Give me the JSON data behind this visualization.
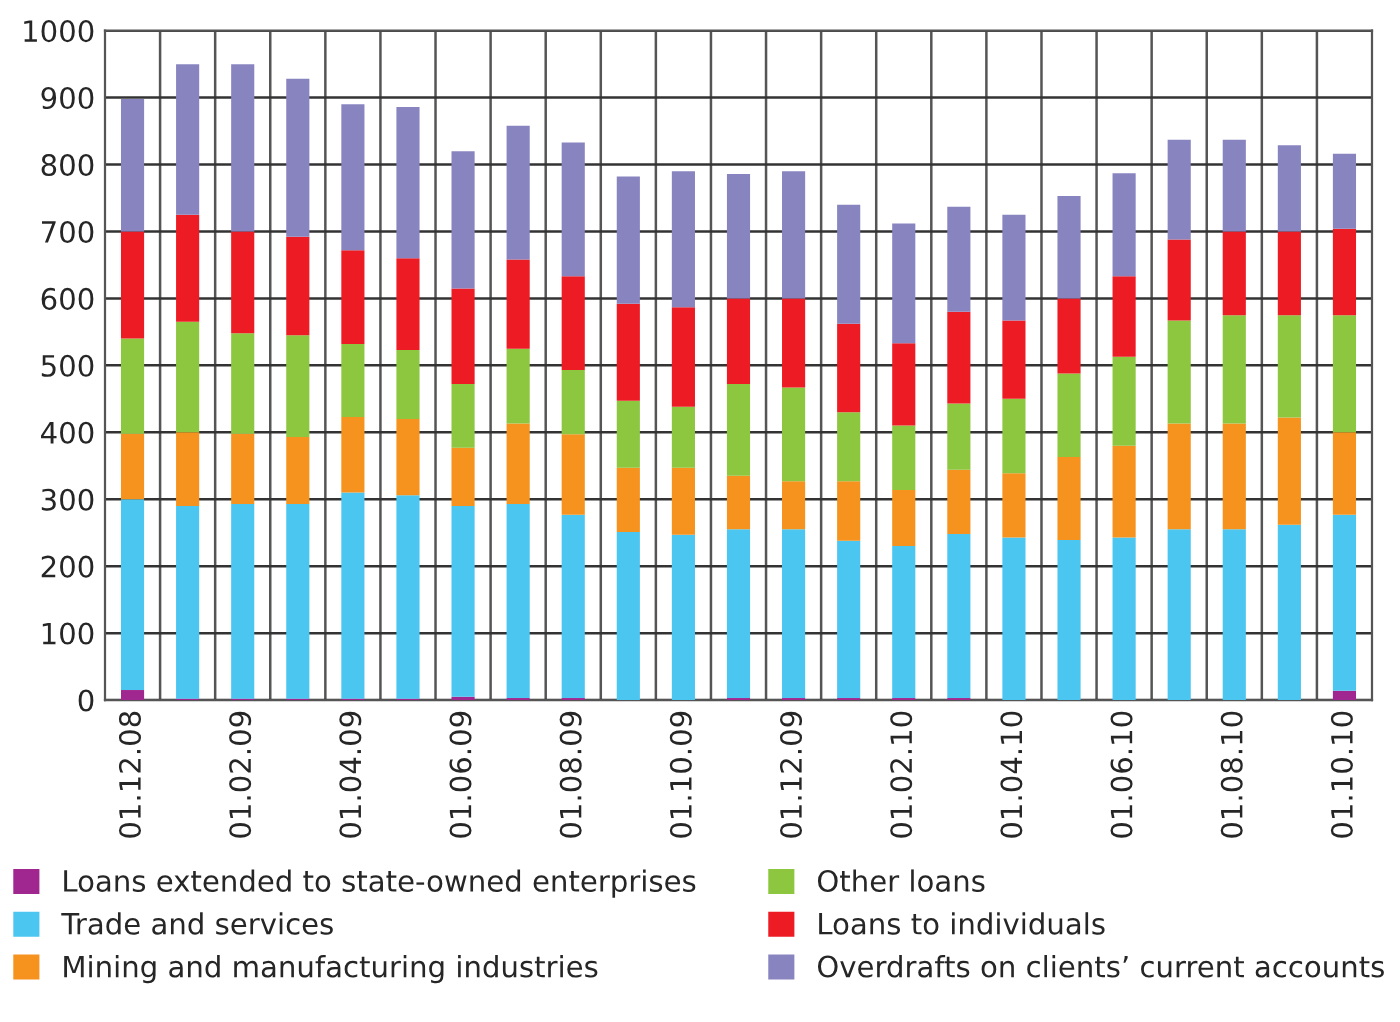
{
  "chart_data": {
    "type": "bar",
    "stacked": true,
    "categories": [
      "01.12.08",
      null,
      "01.02.09",
      null,
      "01.04.09",
      null,
      "01.06.09",
      null,
      "01.08.09",
      null,
      "01.10.09",
      null,
      "01.12.09",
      null,
      "01.02.10",
      null,
      "01.04.10",
      null,
      "01.06.10",
      null,
      "01.08.10",
      null,
      "01.10.10"
    ],
    "series": [
      {
        "name": "Loans extended to state-owned enterprises",
        "color": "#a0278f",
        "values": [
          15,
          2,
          2,
          2,
          2,
          2,
          5,
          3,
          3,
          0,
          0,
          3,
          3,
          3,
          3,
          3,
          0,
          0,
          0,
          0,
          0,
          0,
          14
        ]
      },
      {
        "name": "Trade and services",
        "color": "#4bc6f1",
        "values": [
          285,
          288,
          291,
          291,
          308,
          304,
          285,
          290,
          274,
          251,
          247,
          252,
          252,
          235,
          227,
          245,
          243,
          239,
          243,
          255,
          255,
          262,
          263
        ]
      },
      {
        "name": "Mining and manufacturing industries",
        "color": "#f6921e",
        "values": [
          98,
          110,
          105,
          100,
          113,
          114,
          87,
          120,
          120,
          96,
          100,
          80,
          72,
          89,
          84,
          96,
          96,
          124,
          137,
          158,
          158,
          160,
          123
        ]
      },
      {
        "name": "Other loans",
        "color": "#8dc63f",
        "values": [
          142,
          165,
          150,
          152,
          109,
          103,
          95,
          112,
          96,
          100,
          91,
          137,
          140,
          103,
          96,
          99,
          111,
          125,
          133,
          154,
          162,
          153,
          175
        ]
      },
      {
        "name": "Loans to individuals",
        "color": "#ed1c24",
        "values": [
          160,
          160,
          152,
          147,
          140,
          137,
          143,
          133,
          140,
          145,
          149,
          128,
          133,
          132,
          123,
          137,
          117,
          112,
          120,
          121,
          125,
          125,
          129
        ]
      },
      {
        "name": "Overdrafts on clients’ current accounts",
        "color": "#8884c0",
        "values": [
          198,
          225,
          250,
          236,
          218,
          226,
          205,
          200,
          200,
          190,
          203,
          186,
          190,
          178,
          179,
          157,
          158,
          153,
          154,
          149,
          137,
          129,
          112
        ]
      }
    ],
    "ylim": [
      0,
      1000
    ],
    "yticks": [
      0,
      100,
      200,
      300,
      400,
      500,
      600,
      700,
      800,
      900,
      1000
    ],
    "grid": true,
    "legend": "bottom"
  }
}
